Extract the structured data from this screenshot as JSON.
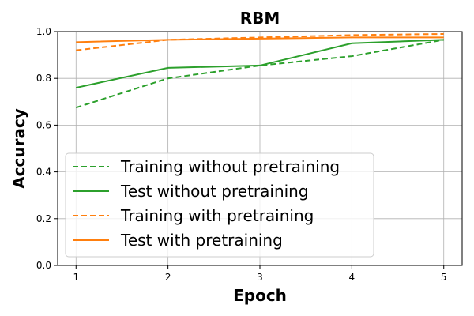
{
  "chart_data": {
    "type": "line",
    "title": "RBM",
    "xlabel": "Epoch",
    "ylabel": "Accuracy",
    "x": [
      1,
      2,
      3,
      4,
      5
    ],
    "xlim": [
      0.8,
      5.2
    ],
    "ylim": [
      0.0,
      1.0
    ],
    "xticks": [
      "1",
      "2",
      "3",
      "4",
      "5"
    ],
    "yticks": [
      "0.0",
      "0.2",
      "0.4",
      "0.6",
      "0.8",
      "1.0"
    ],
    "grid": true,
    "legend_position": "lower-left",
    "series": [
      {
        "name": "Training without pretraining",
        "values": [
          0.675,
          0.8,
          0.855,
          0.895,
          0.965
        ],
        "color": "#2ca02c",
        "style": "dashed"
      },
      {
        "name": "Test without pretraining",
        "values": [
          0.76,
          0.845,
          0.855,
          0.95,
          0.965
        ],
        "color": "#2ca02c",
        "style": "solid"
      },
      {
        "name": "Training with pretraining",
        "values": [
          0.92,
          0.965,
          0.975,
          0.985,
          0.99
        ],
        "color": "#ff7f0e",
        "style": "dashed"
      },
      {
        "name": "Test with pretraining",
        "values": [
          0.955,
          0.965,
          0.97,
          0.975,
          0.975
        ],
        "color": "#ff7f0e",
        "style": "solid"
      }
    ]
  }
}
